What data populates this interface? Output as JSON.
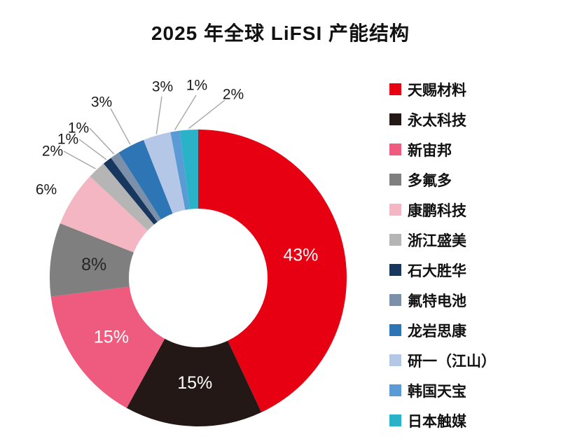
{
  "title": "2025 年全球 LiFSI 产能结构",
  "chart_data": {
    "type": "pie",
    "subtype": "donut",
    "title": "2025 年全球 LiFSI 产能结构",
    "legend_position": "right",
    "unit": "%",
    "start_angle_deg": 0,
    "direction": "clockwise",
    "series": [
      {
        "label": "天赐材料",
        "value": 43,
        "color": "#e60012",
        "label_color": "#ffffff"
      },
      {
        "label": "永太科技",
        "value": 15,
        "color": "#231815",
        "label_color": "#ffffff"
      },
      {
        "label": "新宙邦",
        "value": 15,
        "color": "#ef5b7e",
        "label_color": "#ffffff"
      },
      {
        "label": "多氟多",
        "value": 8,
        "color": "#7f7f7f",
        "label_color": "#262626"
      },
      {
        "label": "康鹏科技",
        "value": 6,
        "color": "#f4b6c2",
        "label_color": "#262626"
      },
      {
        "label": "浙江盛美",
        "value": 2,
        "color": "#b5b5b6"
      },
      {
        "label": "石大胜华",
        "value": 1,
        "color": "#17375e"
      },
      {
        "label": "氟特电池",
        "value": 1,
        "color": "#7c90a9"
      },
      {
        "label": "龙岩思康",
        "value": 3,
        "color": "#2e75b6"
      },
      {
        "label": "研一（江山）",
        "value": 3,
        "color": "#b4c7e7"
      },
      {
        "label": "韩国天宝",
        "value": 1,
        "color": "#5b9bd5"
      },
      {
        "label": "日本触媒",
        "value": 2,
        "color": "#2ab3c8"
      }
    ]
  }
}
